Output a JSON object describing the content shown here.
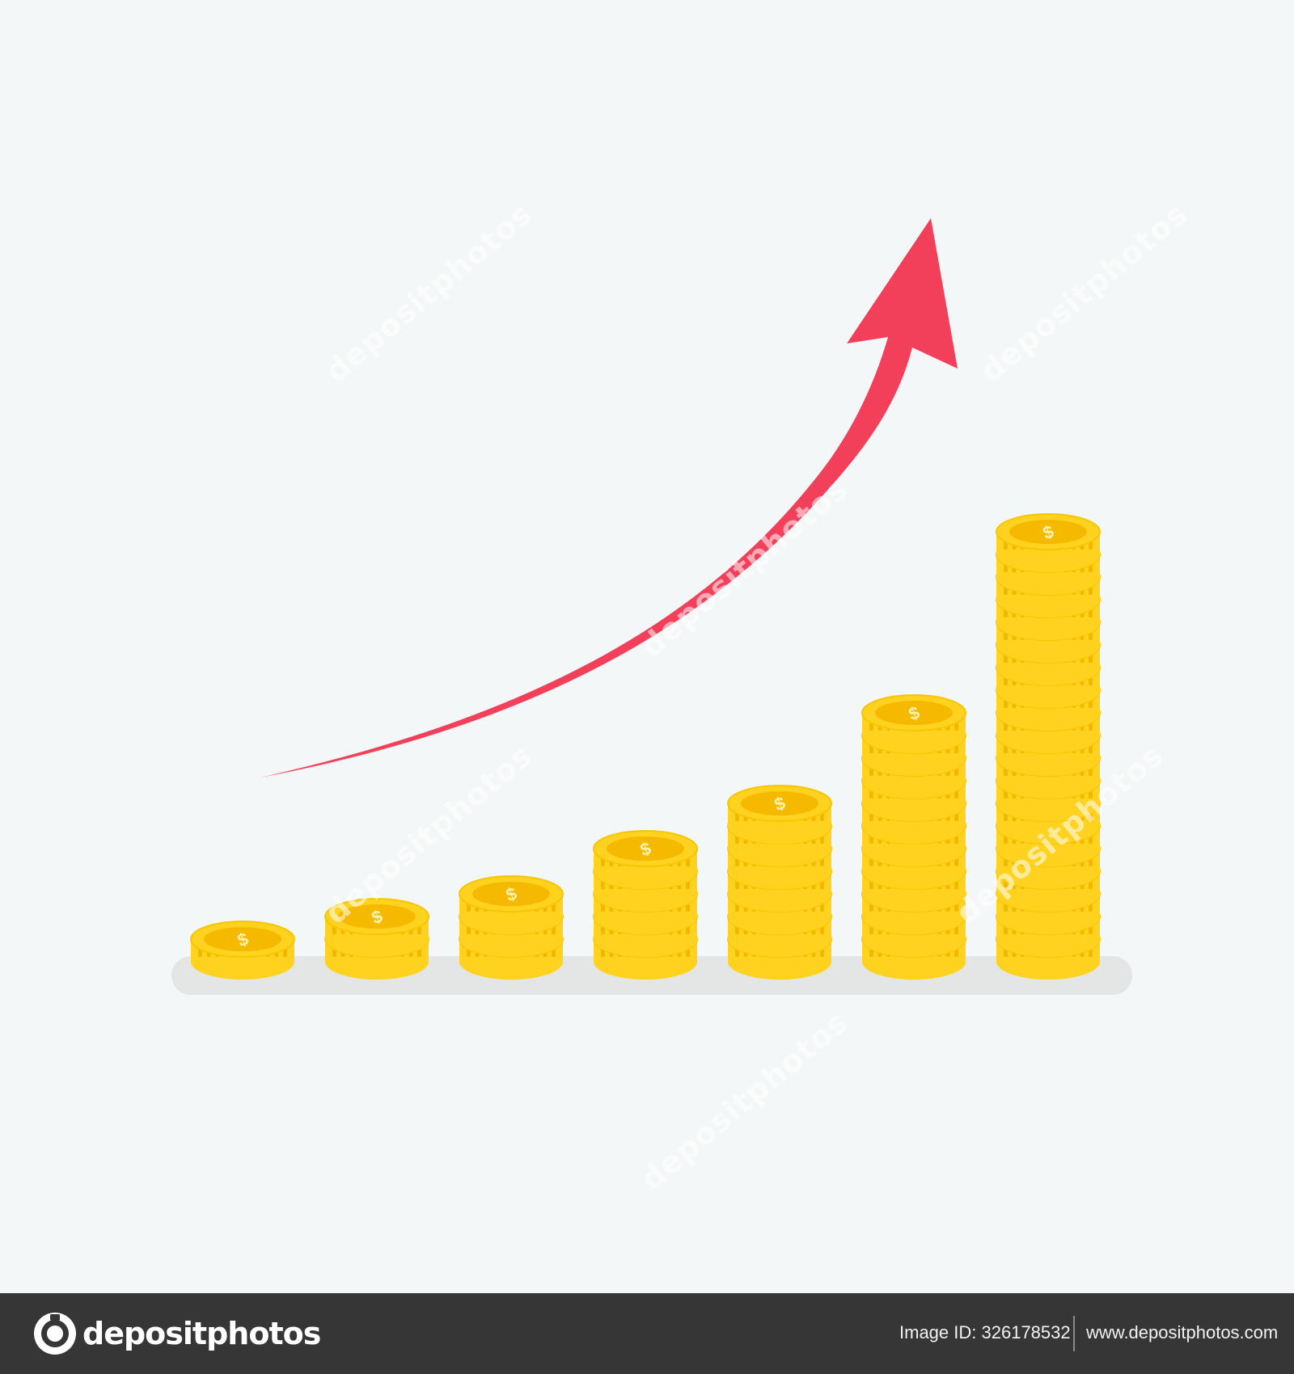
{
  "illustration": {
    "stacks": [
      1,
      2,
      3,
      5,
      7,
      11,
      19
    ],
    "coin_symbol": "$",
    "arrow_color": "#f2405b",
    "coin_colors": {
      "face": "#ffd21f",
      "top_center": "#f5b900",
      "shadow": "#e0e0e0"
    }
  },
  "watermark": {
    "text": "depositphotos"
  },
  "footer": {
    "brand": "depositphotos",
    "image_id_label": "Image ID:",
    "image_id": "326178532",
    "site": "www.depositphotos.com"
  }
}
